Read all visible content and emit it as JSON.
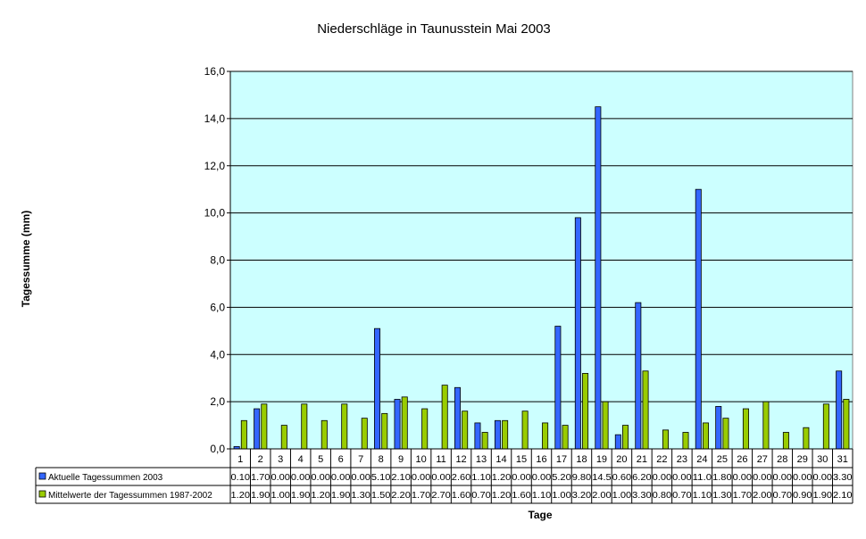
{
  "chart_data": {
    "type": "bar",
    "title": "Niederschläge in Taunusstein Mai 2003",
    "xlabel": "Tage",
    "ylabel": "Tagessumme (mm)",
    "ylim": [
      0,
      16
    ],
    "yticks": [
      "0,0",
      "2,0",
      "4,0",
      "6,0",
      "8,0",
      "10,0",
      "12,0",
      "14,0",
      "16,0"
    ],
    "grid": true,
    "legend": "data-table",
    "plot_background": "#ccffff",
    "categories": [
      "1",
      "2",
      "3",
      "4",
      "5",
      "6",
      "7",
      "8",
      "9",
      "10",
      "11",
      "12",
      "13",
      "14",
      "15",
      "16",
      "17",
      "18",
      "19",
      "20",
      "21",
      "22",
      "23",
      "24",
      "25",
      "26",
      "27",
      "28",
      "29",
      "30",
      "31"
    ],
    "series": [
      {
        "name": "Aktuelle Tagessummen  2003",
        "color": "#3366ff",
        "values": [
          0.1,
          1.7,
          0.0,
          0.0,
          0.0,
          0.0,
          0.0,
          5.1,
          2.1,
          0.0,
          0.0,
          2.6,
          1.1,
          1.2,
          0.0,
          0.0,
          5.2,
          9.8,
          14.5,
          0.6,
          6.2,
          0.0,
          0.0,
          11.0,
          1.8,
          0.0,
          0.0,
          0.0,
          0.0,
          0.0,
          3.3
        ],
        "labels": [
          "0.10",
          "1.70",
          "0.00",
          "0.00",
          "0.00",
          "0.00",
          "0.00",
          "5.10",
          "2.10",
          "0.00",
          "0.00",
          "2.60",
          "1.10",
          "1.20",
          "0.00",
          "0.00",
          "5.20",
          "9.80",
          "14.5",
          "0.60",
          "6.20",
          "0.00",
          "0.00",
          "11.0",
          "1.80",
          "0.00",
          "0.00",
          "0.00",
          "0.00",
          "0.00",
          "3.30"
        ]
      },
      {
        "name": "Mittelwerte der Tagessummen 1987-2002",
        "color": "#99cc00",
        "values": [
          1.2,
          1.9,
          1.0,
          1.9,
          1.2,
          1.9,
          1.3,
          1.5,
          2.2,
          1.7,
          2.7,
          1.6,
          0.7,
          1.2,
          1.6,
          1.1,
          1.0,
          3.2,
          2.0,
          1.0,
          3.3,
          0.8,
          0.7,
          1.1,
          1.3,
          1.7,
          2.0,
          0.7,
          0.9,
          1.9,
          2.1
        ],
        "labels": [
          "1.20",
          "1.90",
          "1.00",
          "1.90",
          "1.20",
          "1.90",
          "1.30",
          "1.50",
          "2.20",
          "1.70",
          "2.70",
          "1.60",
          "0.70",
          "1.20",
          "1.60",
          "1.10",
          "1.00",
          "3.20",
          "2.00",
          "1.00",
          "3.30",
          "0.80",
          "0.70",
          "1.10",
          "1.30",
          "1.70",
          "2.00",
          "0.70",
          "0.90",
          "1.90",
          "2.10"
        ]
      }
    ]
  }
}
